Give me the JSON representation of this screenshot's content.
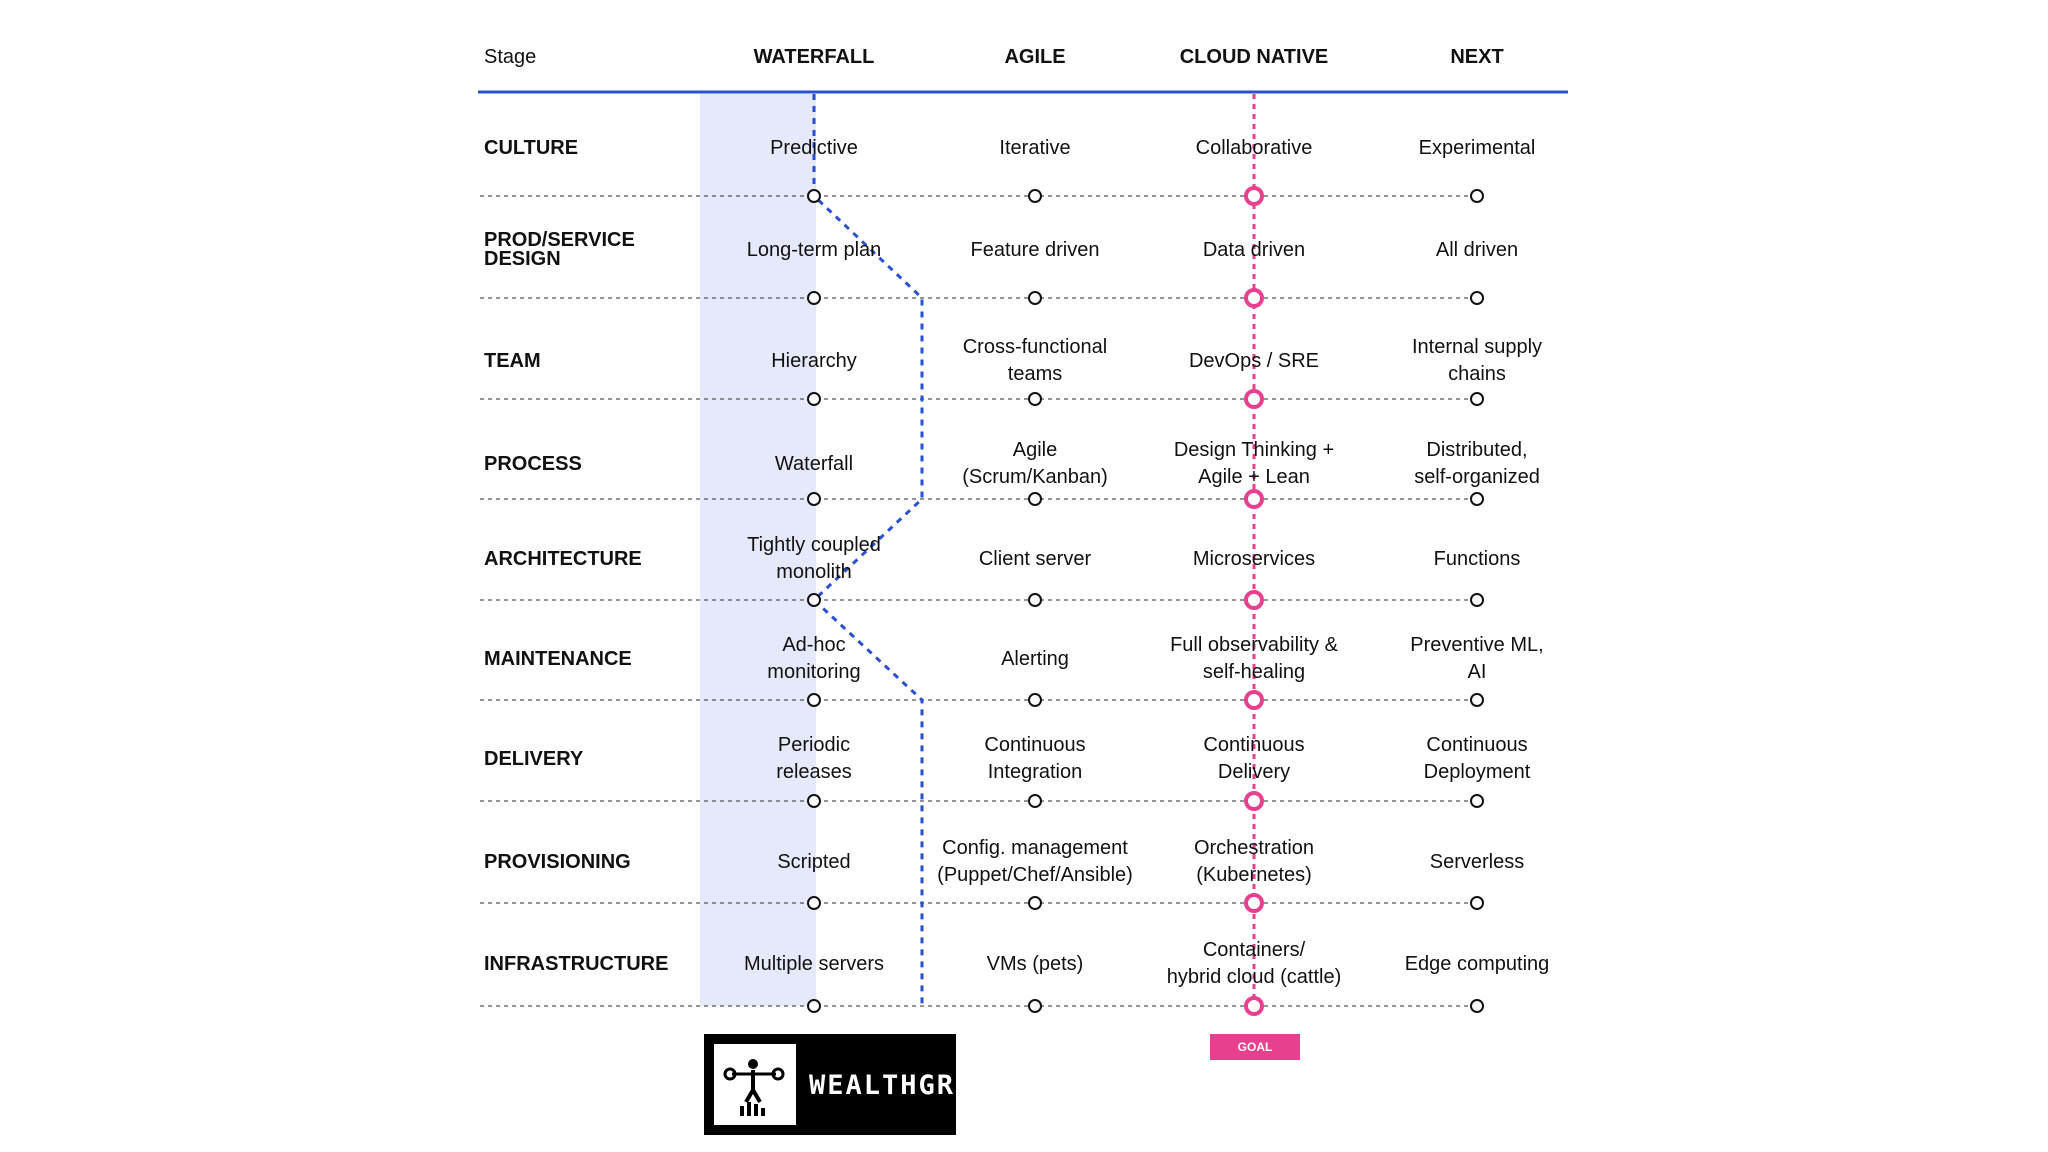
{
  "colors": {
    "blue": "#2a4fd0",
    "pink": "#e6408f",
    "shade": "#e6e9fb"
  },
  "headers": {
    "stage": "Stage",
    "columns": [
      "WATERFALL",
      "AGILE",
      "CLOUD NATIVE",
      "NEXT"
    ]
  },
  "rows": [
    {
      "label": "CULTURE",
      "cells": [
        "Predictive",
        "Iterative",
        "Collaborative",
        "Experimental"
      ]
    },
    {
      "label": "PROD/SERVICE\nDESIGN",
      "cells": [
        "Long-term plan",
        "Feature driven",
        "Data driven",
        "All driven"
      ]
    },
    {
      "label": "TEAM",
      "cells": [
        "Hierarchy",
        "Cross-functional\nteams",
        "DevOps / SRE",
        "Internal supply\nchains"
      ]
    },
    {
      "label": "PROCESS",
      "cells": [
        "Waterfall",
        "Agile\n(Scrum/Kanban)",
        "Design Thinking +\nAgile + Lean",
        "Distributed,\nself-organized"
      ]
    },
    {
      "label": "ARCHITECTURE",
      "cells": [
        "Tightly coupled\nmonolith",
        "Client server",
        "Microservices",
        "Functions"
      ]
    },
    {
      "label": "MAINTENANCE",
      "cells": [
        "Ad-hoc\nmonitoring",
        "Alerting",
        "Full observability &\nself-healing",
        "Preventive ML,\nAI"
      ]
    },
    {
      "label": "DELIVERY",
      "cells": [
        "Periodic\nreleases",
        "Continuous\nIntegration",
        "Continuous\nDelivery",
        "Continuous\nDeployment"
      ]
    },
    {
      "label": "PROVISIONING",
      "cells": [
        "Scripted",
        "Config. management\n(Puppet/Chef/Ansible)",
        "Orchestration\n(Kubernetes)",
        "Serverless"
      ]
    },
    {
      "label": "INFRASTRUCTURE",
      "cells": [
        "Multiple servers",
        "VMs (pets)",
        "Containers/\nhybrid cloud (cattle)",
        "Edge computing"
      ]
    }
  ],
  "current_position": [
    "WATERFALL",
    "AGILE",
    "AGILE",
    "AGILE",
    "WATERFALL",
    "AGILE",
    "AGILE",
    "AGILE",
    "AGILE"
  ],
  "goal": {
    "label": "GOAL",
    "column": "CLOUD NATIVE"
  },
  "logo": {
    "text": "WEALTHGRID"
  }
}
